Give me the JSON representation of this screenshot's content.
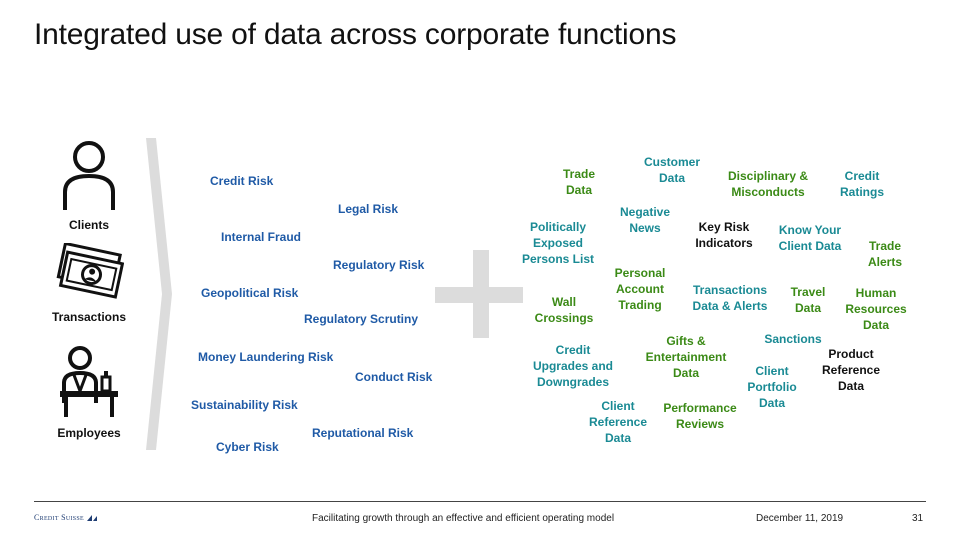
{
  "title": "Integrated use of data across corporate functions",
  "entities": [
    {
      "label": "Clients",
      "icon": "person-icon"
    },
    {
      "label": "Transactions",
      "icon": "banknotes-icon"
    },
    {
      "label": "Employees",
      "icon": "employee-icon"
    }
  ],
  "risks": [
    "Credit Risk",
    "Legal Risk",
    "Internal Fraud",
    "Regulatory Risk",
    "Geopolitical Risk",
    "Regulatory Scrutiny",
    "Money Laundering Risk",
    "Conduct Risk",
    "Sustainability Risk",
    "Reputational Risk",
    "Cyber Risk"
  ],
  "data_types": [
    "Trade\nData",
    "Customer\nData",
    "Disciplinary &\nMisconducts",
    "Credit\nRatings",
    "Politically\nExposed\nPersons List",
    "Negative\nNews",
    "Key Risk\nIndicators",
    "Know Your\nClient Data",
    "Trade\nAlerts",
    "Personal\nAccount\nTrading",
    "Transactions\nData & Alerts",
    "Travel\nData",
    "Human\nResources\nData",
    "Wall\nCrossings",
    "Sanctions",
    "Gifts &\nEntertainment\nData",
    "Credit\nUpgrades and\nDowngrades",
    "Product\nReference\nData",
    "Client\nPortfolio\nData",
    "Client\nReference\nData",
    "Performance\nReviews"
  ],
  "colors": {
    "risk": "#1f5aa6",
    "teal": "#1a8a94",
    "green": "#3b8a16",
    "black": "#111111",
    "plus": "#dcdcdc"
  },
  "footer": {
    "logo": "Credit Suisse",
    "center": "Facilitating growth through an effective and efficient operating model",
    "date": "December 11, 2019",
    "page": "31"
  }
}
